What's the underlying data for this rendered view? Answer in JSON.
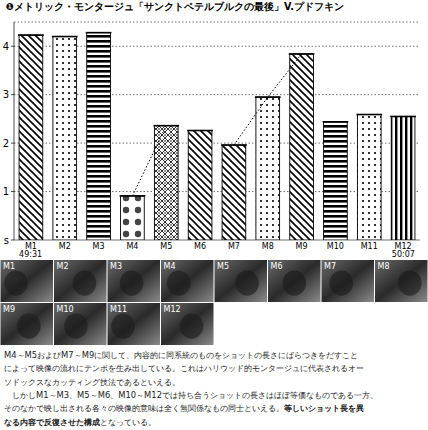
{
  "chart_data": {
    "type": "bar",
    "title": "❶メトリック・モンタージュ「サンクトペテルブルクの最後」V.プドフキン",
    "categories": [
      "M1",
      "M2",
      "M3",
      "M4",
      "M5",
      "M6",
      "M7",
      "M8",
      "M9",
      "M10",
      "M11",
      "M12"
    ],
    "series": [
      {
        "type": "bar",
        "color": "#000000",
        "values": [
          4.23,
          4.2,
          4.28,
          0.91,
          2.36,
          2.26,
          1.96,
          2.95,
          3.84,
          2.44,
          2.59,
          2.55
        ]
      },
      {
        "type": "line",
        "color": "#000000",
        "line_style": "dotted",
        "values": [
          null,
          null,
          null,
          0.91,
          2.36,
          null,
          1.96,
          2.95,
          3.84,
          null,
          null,
          null
        ]
      }
    ],
    "ylim": [
      0,
      4.5
    ],
    "yticks": [
      {
        "value": 0,
        "label": "s"
      },
      1,
      2,
      3,
      4
    ],
    "grid": true,
    "annotations": [
      "49:31",
      "50:07"
    ]
  },
  "thumbnails": [
    "M1",
    "M2",
    "M3",
    "M4",
    "M5",
    "M6",
    "M7",
    "M8",
    "M9",
    "M10",
    "M11",
    "M12"
  ],
  "text": {
    "lines": [
      [
        {
          "text": " M4～M5およびM7～M9に関して、内容的に同系統のものをショットの長さにばらつきをだすこと"
        }
      ],
      [
        {
          "text": "によって映像の流れにテンポを生み出している。これはハリウッド的モンタージュに代表されるオー"
        }
      ],
      [
        {
          "text": "ソドックスなカッティング技法であるといえる。"
        }
      ],
      [
        {
          "text": "　しかしM1～M3、M5～M6、M10～M12では持ち合うショットの長さはほぼ等価なものである一方、"
        }
      ],
      [
        {
          "text": "そのなかで映し出される各々の映像的意味は全く無関係なもの同士といえる。"
        },
        {
          "text": "等しいショット長を異",
          "bold": true
        }
      ],
      [
        {
          "text": "なる内容で反復させた構成",
          "bold": true
        },
        {
          "text": "となっている。"
        }
      ]
    ]
  }
}
